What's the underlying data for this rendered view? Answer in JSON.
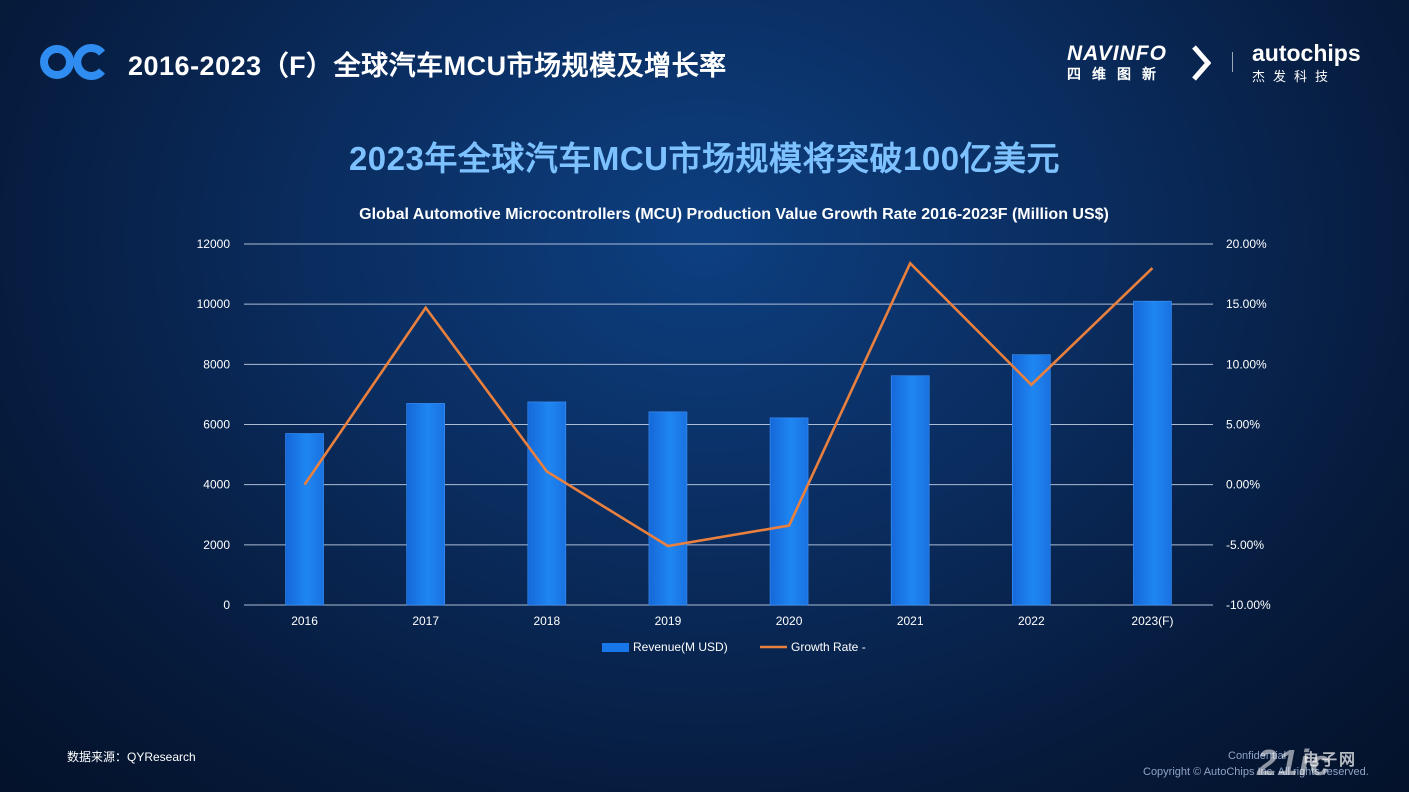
{
  "header": {
    "title": "2016-2023（F）全球汽车MCU市场规模及增长率",
    "navinfo_name": "NAVINFO",
    "navinfo_cn": "四维图新",
    "autochips_name": "autochips",
    "autochips_cn": "杰发科技"
  },
  "headline": "2023年全球汽车MCU市场规模将突破100亿美元",
  "chart_data": {
    "type": "bar+line",
    "title": "Global Automotive Microcontrollers (MCU) Production Value Growth Rate 2016-2023F  (Million US$)",
    "categories": [
      "2016",
      "2017",
      "2018",
      "2019",
      "2020",
      "2021",
      "2022",
      "2023(F)"
    ],
    "series": [
      {
        "name": "Revenue(M USD)",
        "type": "bar",
        "axis": "left",
        "values": [
          5700,
          6700,
          6750,
          6420,
          6220,
          7620,
          8320,
          10100
        ]
      },
      {
        "name": "Growth Rate -",
        "type": "line",
        "axis": "right",
        "values": [
          0.0,
          14.7,
          1.1,
          -5.1,
          -3.4,
          18.4,
          8.3,
          18.0
        ]
      }
    ],
    "left_axis": {
      "min": 0,
      "max": 12000,
      "step": 2000,
      "ticks": [
        "0",
        "2000",
        "4000",
        "6000",
        "8000",
        "10000",
        "12000"
      ]
    },
    "right_axis": {
      "min": -10,
      "max": 20,
      "step": 5,
      "ticks": [
        "-10.00%",
        "-5.00%",
        "0.00%",
        "5.00%",
        "10.00%",
        "15.00%",
        "20.00%"
      ]
    },
    "grid": true,
    "legend": "bottom-center",
    "colors": {
      "bar": "#1877e8",
      "line": "#e9803e",
      "grid": "#c9d6ea"
    }
  },
  "footer": {
    "source": "数据来源：QYResearch",
    "confidential": "Confidential",
    "copyright": "Copyright © AutoChips Inc. All rights reserved.",
    "watermark": "21ic",
    "watermark_cn": "电子网"
  }
}
